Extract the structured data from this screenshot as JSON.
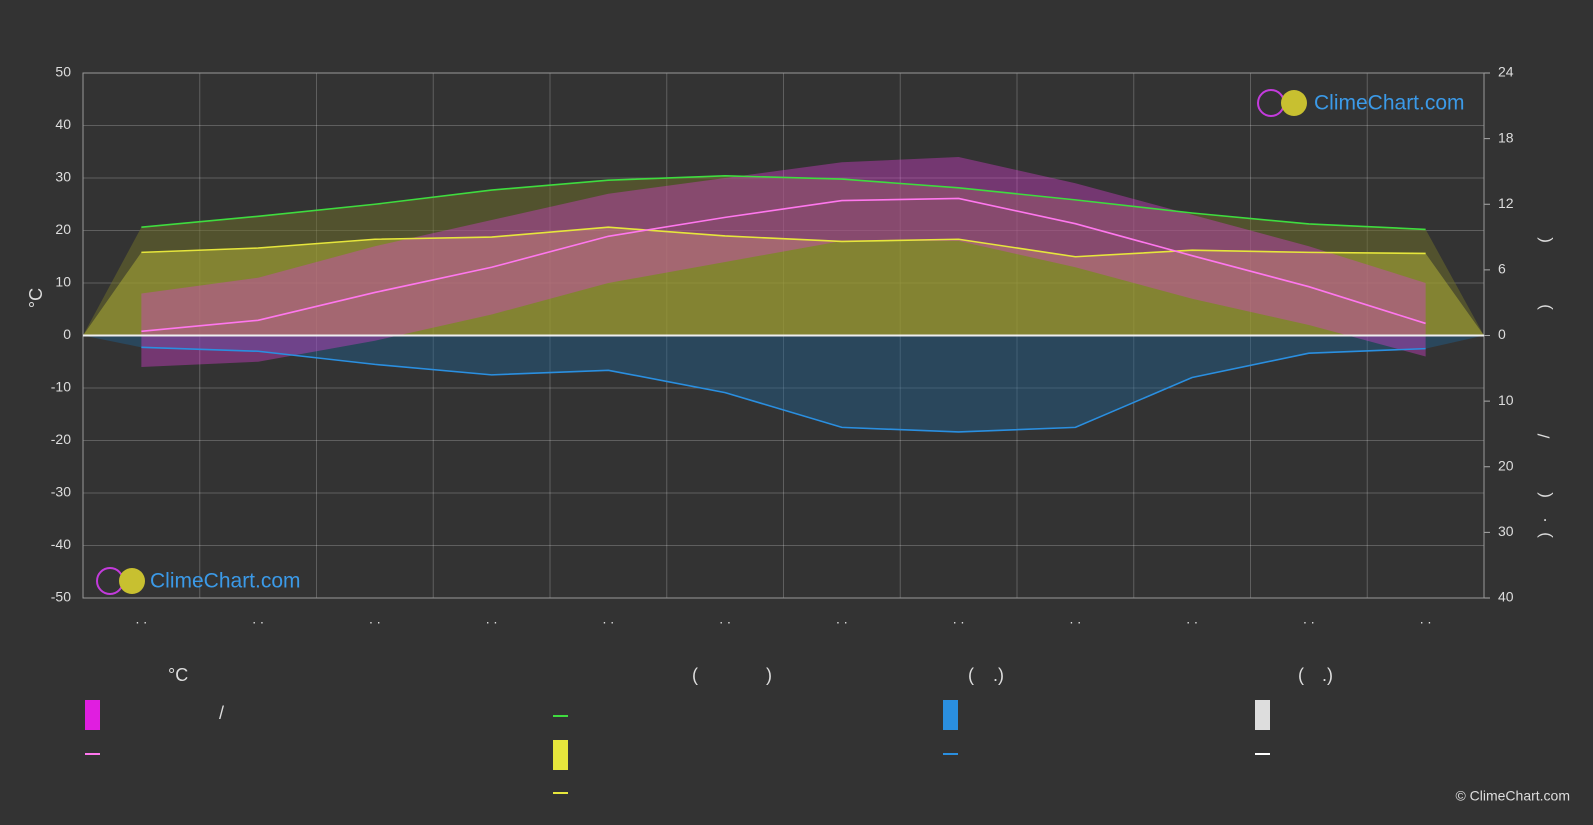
{
  "chart_data": {
    "type": "line",
    "y_label": "°C",
    "categories": [
      ". .",
      ". .",
      ". .",
      ". .",
      ". .",
      ". .",
      ". .",
      ". .",
      ". .",
      ". .",
      ". .",
      ". ."
    ],
    "ylim": [
      -50,
      50
    ],
    "yticks": [
      -50,
      -40,
      -30,
      -20,
      -10,
      0,
      10,
      20,
      30,
      40,
      50
    ],
    "y2lim": [
      0,
      24
    ],
    "y2ticks": [
      0,
      6,
      12,
      18,
      24
    ],
    "y3lim": [
      0,
      40
    ],
    "y3ticks": [
      10,
      20,
      30,
      40
    ],
    "grid": true,
    "series": [
      {
        "color": "#3fdc3f",
        "axis": "y2",
        "values": [
          9.9,
          10.9,
          12.0,
          13.3,
          14.2,
          14.6,
          14.3,
          13.5,
          12.4,
          11.2,
          10.2,
          9.7
        ]
      },
      {
        "color": "#e6e63c",
        "axis": "y2",
        "values": [
          7.6,
          8.0,
          8.8,
          9.0,
          9.9,
          9.1,
          8.6,
          8.8,
          7.2,
          7.8,
          7.6,
          7.5
        ]
      },
      {
        "color": "#ff77ee",
        "axis": "y",
        "values": [
          0.8,
          2.9,
          8.2,
          13.0,
          18.9,
          22.5,
          25.7,
          26.1,
          21.3,
          15.2,
          9.3,
          2.3
        ]
      },
      {
        "color": "#d63fd0",
        "axis": "y",
        "values": [
          8,
          11,
          17,
          22,
          27,
          30,
          33,
          34,
          29,
          23,
          17,
          10
        ]
      },
      {
        "color": "#d63fd0",
        "axis": "y",
        "values": [
          -6,
          -5,
          -1,
          4,
          10,
          14,
          18,
          18,
          13,
          7,
          2,
          -4
        ]
      },
      {
        "color": "#2a8fe0",
        "axis": "y3",
        "values": [
          1.8,
          2.4,
          4.4,
          6.0,
          5.3,
          8.7,
          14.0,
          14.7,
          14.0,
          6.4,
          2.7,
          2.0
        ]
      }
    ],
    "right_axis_marks": [
      "(",
      ")",
      "/",
      "(",
      "·",
      ")"
    ],
    "legend_texts": [
      "°C",
      "/",
      "(",
      ")",
      "(",
      ".)",
      "(",
      ".)"
    ],
    "logo": "ClimeChart.com",
    "copyright": "© ClimeChart.com"
  }
}
